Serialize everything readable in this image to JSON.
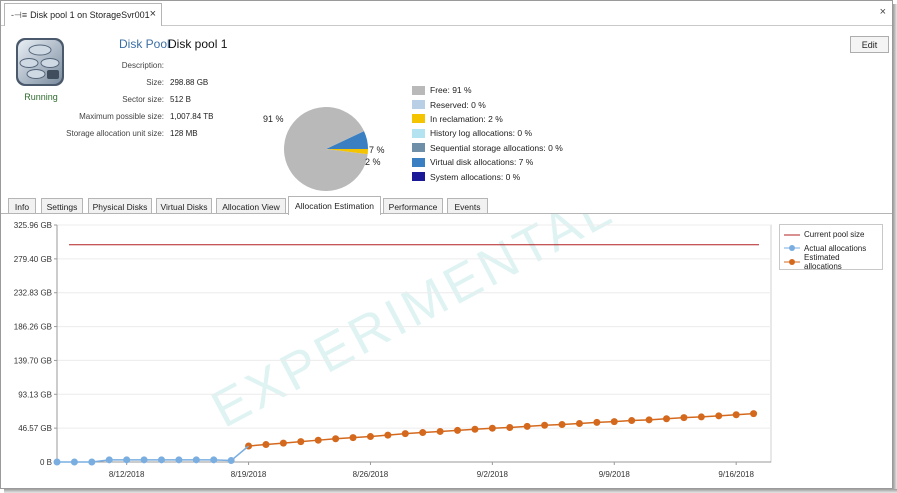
{
  "window": {
    "tab_title": "Disk pool 1 on StorageSvr001",
    "tab_icon": "pool-connector-icon",
    "close_glyph": "×",
    "window_close_glyph": "×"
  },
  "header": {
    "title_label": "Disk Pool",
    "title_value": "Disk pool 1",
    "status": "Running",
    "edit_label": "Edit"
  },
  "properties": [
    {
      "label": "Description:",
      "value": ""
    },
    {
      "label": "Size:",
      "value": "298.88 GB"
    },
    {
      "label": "Sector size:",
      "value": "512 B"
    },
    {
      "label": "Maximum possible size:",
      "value": "1,007.84 TB"
    },
    {
      "label": "Storage allocation unit size:",
      "value": "128 MB"
    }
  ],
  "pie": {
    "labels": {
      "free": "91 %",
      "virtual": "7 %",
      "reclaim": "2 %"
    },
    "slices": [
      {
        "name": "Free",
        "value": 91,
        "color": "#b9b9b9"
      },
      {
        "name": "In reclamation",
        "value": 2,
        "color": "#f5c400"
      },
      {
        "name": "Virtual disk allocations",
        "value": 7,
        "color": "#3a7fc1"
      }
    ]
  },
  "legend": [
    {
      "label": "Free: 91 %",
      "color": "#b9b9b9"
    },
    {
      "label": "Reserved: 0 %",
      "color": "#b8cfe6"
    },
    {
      "label": "In reclamation: 2 %",
      "color": "#f5c400"
    },
    {
      "label": "History log allocations: 0 %",
      "color": "#b3e3f0"
    },
    {
      "label": "Sequential storage allocations: 0 %",
      "color": "#6f8fa8"
    },
    {
      "label": "Virtual disk allocations: 7 %",
      "color": "#3a7fc1"
    },
    {
      "label": "System allocations: 0 %",
      "color": "#1a1a99"
    }
  ],
  "tabs": [
    {
      "label": "Info",
      "active": false
    },
    {
      "label": "Settings",
      "active": false
    },
    {
      "label": "Physical Disks",
      "active": false
    },
    {
      "label": "Virtual Disks",
      "active": false
    },
    {
      "label": "Allocation View",
      "active": false
    },
    {
      "label": "Allocation Estimation",
      "active": true
    },
    {
      "label": "Performance",
      "active": false
    },
    {
      "label": "Events",
      "active": false
    }
  ],
  "chart_data": {
    "type": "line",
    "watermark": "EXPERIMENTAL",
    "y_ticks": [
      "0 B",
      "46.57 GB",
      "93.13 GB",
      "139.70 GB",
      "186.26 GB",
      "232.83 GB",
      "279.40 GB",
      "325.96 GB"
    ],
    "y_range_gb": [
      0,
      325.96
    ],
    "x_ticks": [
      "8/12/2018",
      "8/19/2018",
      "8/26/2018",
      "9/2/2018",
      "9/9/2018",
      "9/16/2018"
    ],
    "x_range": [
      "8/8/2018",
      "9/18/2018"
    ],
    "legend_position": "top-right",
    "series": [
      {
        "name": "Current pool size",
        "color": "#b02020",
        "style": "line",
        "x": [
          "8/8/2018",
          "9/18/2018"
        ],
        "values": [
          298.88,
          298.88
        ]
      },
      {
        "name": "Actual allocations",
        "color": "#7aaee0",
        "style": "line-markers",
        "x": [
          "8/8/2018",
          "8/9/2018",
          "8/10/2018",
          "8/11/2018",
          "8/12/2018",
          "8/13/2018",
          "8/14/2018",
          "8/15/2018",
          "8/16/2018",
          "8/17/2018",
          "8/18/2018"
        ],
        "values": [
          0,
          0,
          0,
          3,
          3,
          3,
          3,
          3,
          3,
          3,
          2
        ]
      },
      {
        "name": "Estimated allocations",
        "color": "#d4691e",
        "style": "line-markers",
        "x": [
          "8/19/2018",
          "8/20/2018",
          "8/21/2018",
          "8/22/2018",
          "8/23/2018",
          "8/24/2018",
          "8/25/2018",
          "8/26/2018",
          "8/27/2018",
          "8/28/2018",
          "8/29/2018",
          "8/30/2018",
          "8/31/2018",
          "9/1/2018",
          "9/2/2018",
          "9/3/2018",
          "9/4/2018",
          "9/5/2018",
          "9/6/2018",
          "9/7/2018",
          "9/8/2018",
          "9/9/2018",
          "9/10/2018",
          "9/11/2018",
          "9/12/2018",
          "9/13/2018",
          "9/14/2018",
          "9/15/2018",
          "9/16/2018",
          "9/17/2018"
        ],
        "values": [
          22,
          24,
          26,
          28,
          30,
          32,
          33.5,
          35,
          37,
          39,
          40.5,
          42,
          43.5,
          45,
          46.5,
          47.5,
          49,
          50.5,
          51.5,
          53,
          54.5,
          55.5,
          57,
          58,
          59.5,
          61,
          62,
          63.5,
          65,
          66.5
        ]
      }
    ]
  }
}
